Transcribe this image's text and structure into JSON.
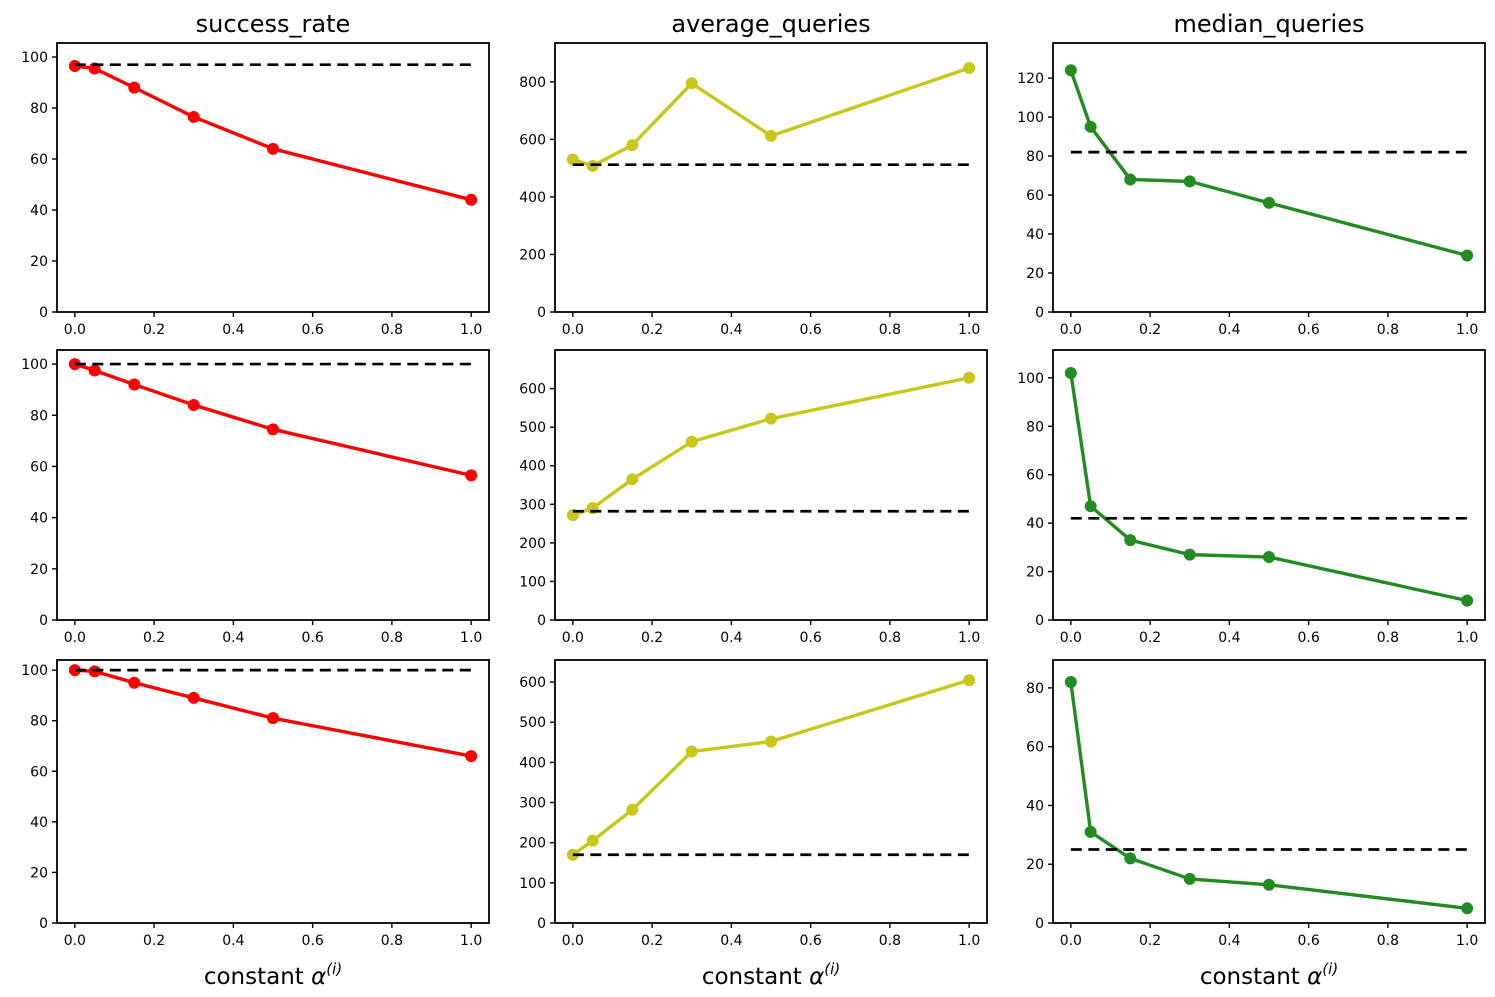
{
  "figure": {
    "background": "#ffffff",
    "baseline_color": "#000000",
    "xlabel": {
      "prefix": "constant ",
      "alpha": "α",
      "superscript": "(i)"
    },
    "x_values": [
      0.0,
      0.05,
      0.15,
      0.3,
      0.5,
      1.0
    ],
    "x_tick_values": [
      0.0,
      0.2,
      0.4,
      0.6,
      0.8,
      1.0
    ],
    "x_tick_labels": [
      "0.0",
      "0.2",
      "0.4",
      "0.6",
      "0.8",
      "1.0"
    ],
    "xlim": [
      -0.045,
      1.045
    ]
  },
  "chart_data": [
    {
      "type": "line",
      "title": "success_rate",
      "color": "#ff0000",
      "x": [
        0.0,
        0.05,
        0.15,
        0.3,
        0.5,
        1.0
      ],
      "values": [
        96.5,
        95.5,
        88,
        76.5,
        64,
        44
      ],
      "baseline": 97,
      "ylim": [
        0,
        105.5
      ],
      "yticks": [
        0,
        20,
        40,
        60,
        80,
        100
      ],
      "xlabel": "",
      "ylabel": ""
    },
    {
      "type": "line",
      "title": "average_queries",
      "color": "#c8c81a",
      "x": [
        0.0,
        0.05,
        0.15,
        0.3,
        0.5,
        1.0
      ],
      "values": [
        530,
        508,
        580,
        795,
        612,
        848
      ],
      "baseline": 512,
      "ylim": [
        0,
        935
      ],
      "yticks": [
        0,
        200,
        400,
        600,
        800
      ],
      "xlabel": "",
      "ylabel": ""
    },
    {
      "type": "line",
      "title": "median_queries",
      "color": "#228b22",
      "x": [
        0.0,
        0.05,
        0.15,
        0.3,
        0.5,
        1.0
      ],
      "values": [
        124,
        95,
        68,
        67,
        56,
        29
      ],
      "baseline": 82,
      "ylim": [
        0,
        138
      ],
      "yticks": [
        0,
        20,
        40,
        60,
        80,
        100,
        120
      ],
      "xlabel": "",
      "ylabel": ""
    },
    {
      "type": "line",
      "color": "#ff0000",
      "x": [
        0.0,
        0.05,
        0.15,
        0.3,
        0.5,
        1.0
      ],
      "values": [
        100,
        97.5,
        92,
        84,
        74.5,
        56.5
      ],
      "baseline": 100,
      "ylim": [
        0,
        105.5
      ],
      "yticks": [
        0,
        20,
        40,
        60,
        80,
        100
      ],
      "xlabel": "",
      "ylabel": ""
    },
    {
      "type": "line",
      "color": "#c8c81a",
      "x": [
        0.0,
        0.05,
        0.15,
        0.3,
        0.5,
        1.0
      ],
      "values": [
        272,
        290,
        365,
        462,
        522,
        628
      ],
      "baseline": 282,
      "ylim": [
        0,
        700
      ],
      "yticks": [
        0,
        100,
        200,
        300,
        400,
        500,
        600
      ],
      "xlabel": "",
      "ylabel": ""
    },
    {
      "type": "line",
      "color": "#228b22",
      "x": [
        0.0,
        0.05,
        0.15,
        0.3,
        0.5,
        1.0
      ],
      "values": [
        102,
        47,
        33,
        27,
        26,
        8
      ],
      "baseline": 42,
      "ylim": [
        0,
        111.5
      ],
      "yticks": [
        0,
        20,
        40,
        60,
        80,
        100
      ],
      "xlabel": "",
      "ylabel": ""
    },
    {
      "type": "line",
      "color": "#ff0000",
      "x": [
        0.0,
        0.05,
        0.15,
        0.3,
        0.5,
        1.0
      ],
      "values": [
        100,
        99.5,
        95,
        89,
        81,
        66
      ],
      "baseline": 100,
      "ylim": [
        0,
        104
      ],
      "yticks": [
        0,
        20,
        40,
        60,
        80,
        100
      ],
      "xlabel": "constant α^(i)",
      "ylabel": ""
    },
    {
      "type": "line",
      "color": "#c8c81a",
      "x": [
        0.0,
        0.05,
        0.15,
        0.3,
        0.5,
        1.0
      ],
      "values": [
        170,
        205,
        282,
        427,
        452,
        605
      ],
      "baseline": 170,
      "ylim": [
        0,
        655
      ],
      "yticks": [
        0,
        100,
        200,
        300,
        400,
        500,
        600
      ],
      "xlabel": "constant α^(i)",
      "ylabel": ""
    },
    {
      "type": "line",
      "color": "#228b22",
      "x": [
        0.0,
        0.05,
        0.15,
        0.3,
        0.5,
        1.0
      ],
      "values": [
        82,
        31,
        22,
        15,
        13,
        5
      ],
      "baseline": 25,
      "ylim": [
        0,
        89.5
      ],
      "yticks": [
        0,
        20,
        40,
        60,
        80
      ],
      "xlabel": "constant α^(i)",
      "ylabel": ""
    }
  ]
}
